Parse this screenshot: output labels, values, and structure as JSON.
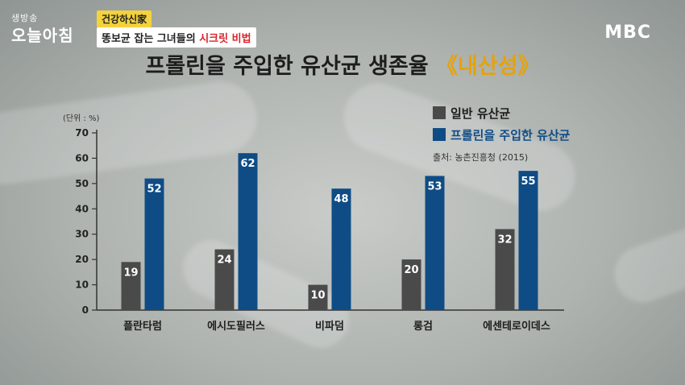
{
  "header": {
    "program_small": "생방송",
    "program_big": "오늘아침",
    "tag_top": "건강하신家",
    "tag_bottom_main": "똥보균 잡는 그녀들의 ",
    "tag_bottom_highlight": "시크릿 비법",
    "channel_logo": "MBC"
  },
  "chart_data": {
    "type": "bar",
    "title": "프롤린을 주입한 유산균 생존율",
    "title_highlight": "《내산성》",
    "unit_label": "(단위 : %)",
    "categories": [
      "플란타럼",
      "에시도필러스",
      "비파덤",
      "롱검",
      "에센테로이데스"
    ],
    "series": [
      {
        "name": "일반 유산균",
        "color": "#4a4a4a",
        "values": [
          19,
          24,
          10,
          20,
          32
        ]
      },
      {
        "name": "프롤린을 주입한 유산균",
        "color": "#0f4c86",
        "values": [
          52,
          62,
          48,
          53,
          55
        ]
      }
    ],
    "ylim": [
      0,
      70
    ],
    "yticks": [
      0,
      10,
      20,
      30,
      40,
      50,
      60,
      70
    ],
    "source": "출처: 농촌진흥청 (2015)",
    "legend_position": "top-right"
  }
}
